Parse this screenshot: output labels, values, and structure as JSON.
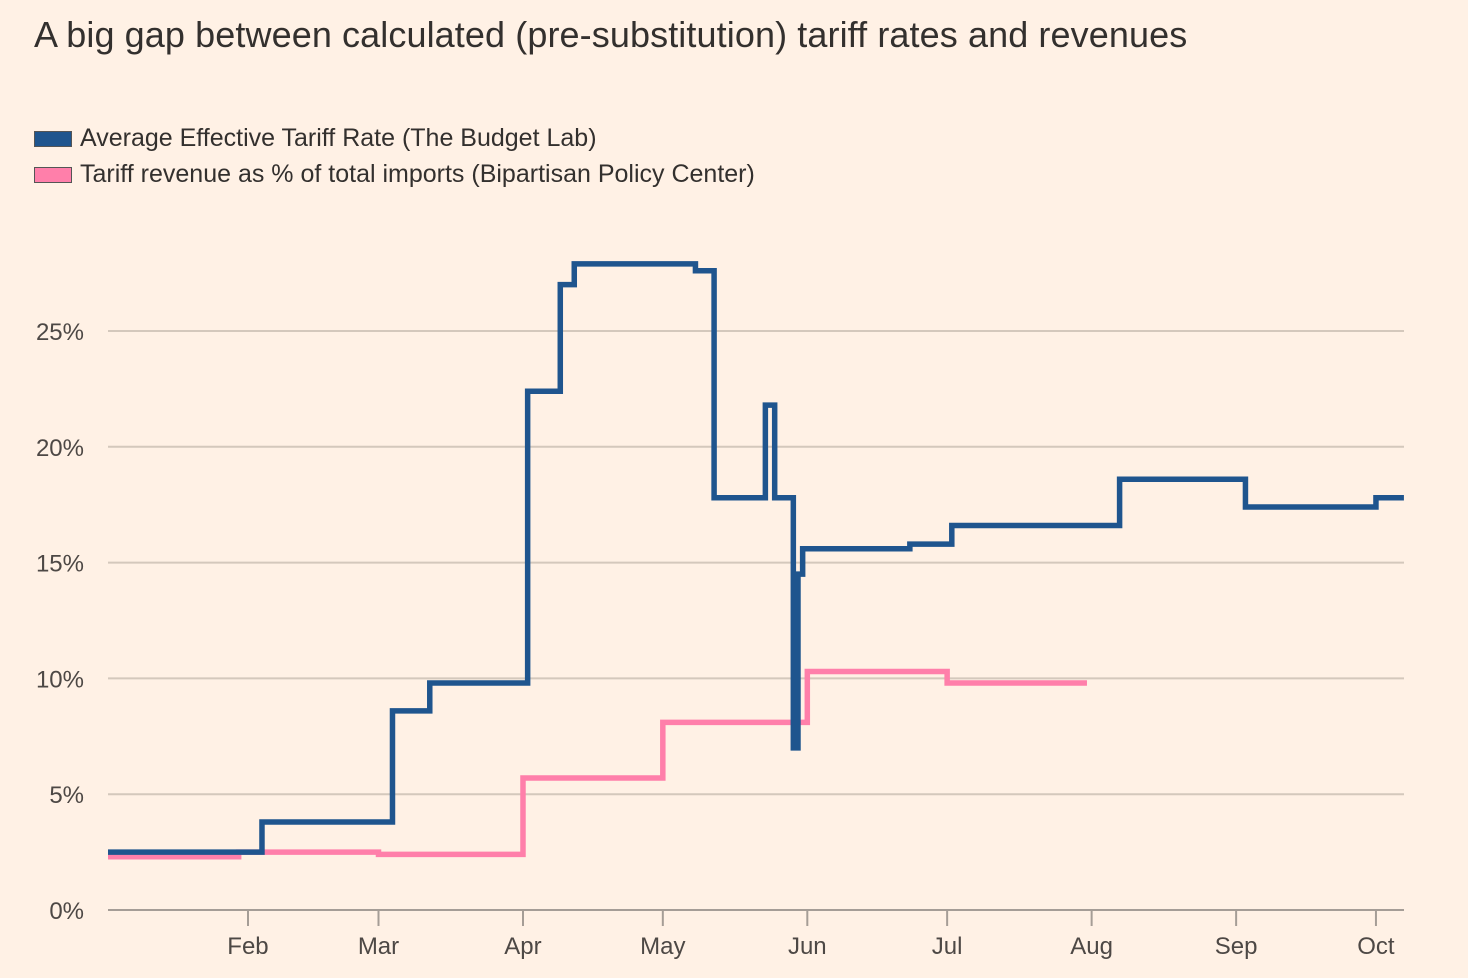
{
  "chart_data": {
    "type": "line",
    "step": "after",
    "title": "A big gap between calculated (pre-substitution) tariff rates and revenues",
    "xlabel": "",
    "ylabel": "",
    "ylim": [
      0,
      28
    ],
    "yticks": [
      0,
      5,
      10,
      15,
      20,
      25
    ],
    "ytick_labels": [
      "0%",
      "5%",
      "10%",
      "15%",
      "20%",
      "25%"
    ],
    "xlim": [
      "2025-01-01",
      "2025-10-07"
    ],
    "xticks": [
      "2025-02-01",
      "2025-03-01",
      "2025-04-01",
      "2025-05-01",
      "2025-06-01",
      "2025-07-01",
      "2025-08-01",
      "2025-09-01",
      "2025-10-01"
    ],
    "xtick_labels": [
      "Feb",
      "Mar",
      "Apr",
      "May",
      "Jun",
      "Jul",
      "Aug",
      "Sep",
      "Oct"
    ],
    "grid": true,
    "legend_position": "top-left",
    "series": [
      {
        "name": "Average Effective Tariff Rate (The Budget Lab)",
        "color": "#1f558e",
        "points": [
          [
            "2025-01-01",
            2.5
          ],
          [
            "2025-02-04",
            3.8
          ],
          [
            "2025-03-04",
            8.6
          ],
          [
            "2025-03-12",
            9.8
          ],
          [
            "2025-04-02",
            22.4
          ],
          [
            "2025-04-09",
            27.0
          ],
          [
            "2025-04-12",
            27.9
          ],
          [
            "2025-05-08",
            27.6
          ],
          [
            "2025-05-12",
            17.8
          ],
          [
            "2025-05-23",
            21.8
          ],
          [
            "2025-05-25",
            17.8
          ],
          [
            "2025-05-29",
            7.0
          ],
          [
            "2025-05-30",
            14.5
          ],
          [
            "2025-05-31",
            15.6
          ],
          [
            "2025-06-23",
            15.8
          ],
          [
            "2025-07-02",
            16.6
          ],
          [
            "2025-08-07",
            18.6
          ],
          [
            "2025-09-03",
            17.4
          ],
          [
            "2025-10-01",
            17.8
          ],
          [
            "2025-10-07",
            17.8
          ]
        ]
      },
      {
        "name": "Tariff revenue as % of total imports (Bipartisan Policy Center)",
        "color": "#ff7faa",
        "points": [
          [
            "2025-01-01",
            2.3
          ],
          [
            "2025-01-30",
            2.5
          ],
          [
            "2025-03-01",
            2.4
          ],
          [
            "2025-04-01",
            5.7
          ],
          [
            "2025-05-01",
            8.1
          ],
          [
            "2025-06-01",
            10.3
          ],
          [
            "2025-07-01",
            9.8
          ],
          [
            "2025-07-31",
            9.8
          ]
        ]
      }
    ]
  }
}
